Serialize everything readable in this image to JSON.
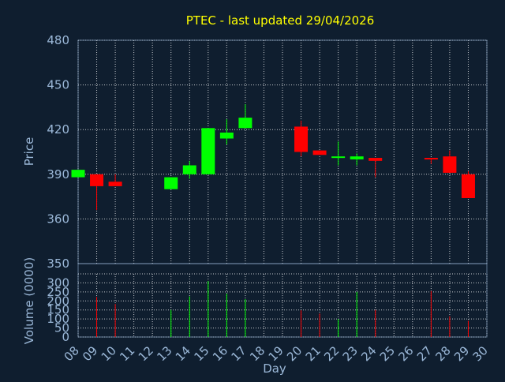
{
  "chart_data": [
    {
      "type": "candlestick",
      "title": "PTEC - last updated 29/04/2026",
      "ylabel": "Price",
      "ylim": [
        330,
        480
      ],
      "yticks": [
        360,
        390,
        420,
        450,
        480
      ],
      "grid": true,
      "colors": {
        "up": "#00ff00",
        "down": "#ff0000",
        "grid": "#ffffff",
        "text": "#9bb8d8",
        "title": "#ffff00",
        "background": "#0f1e2f"
      },
      "candles": [
        {
          "day": "08",
          "open": 388,
          "close": 393,
          "high": 393,
          "low": 388
        },
        {
          "day": "09",
          "open": 390,
          "close": 382,
          "high": 390,
          "low": 366
        },
        {
          "day": "10",
          "open": 385,
          "close": 382,
          "high": 390,
          "low": 382
        },
        {
          "day": "13",
          "open": 380,
          "close": 388,
          "high": 388,
          "low": 380
        },
        {
          "day": "14",
          "open": 390,
          "close": 396,
          "high": 399,
          "low": 387
        },
        {
          "day": "15",
          "open": 390,
          "close": 421,
          "high": 421,
          "low": 390
        },
        {
          "day": "16",
          "open": 414,
          "close": 418,
          "high": 427,
          "low": 410
        },
        {
          "day": "17",
          "open": 421,
          "close": 428,
          "high": 437,
          "low": 421
        },
        {
          "day": "20",
          "open": 422,
          "close": 405,
          "high": 426,
          "low": 402
        },
        {
          "day": "21",
          "open": 406,
          "close": 403,
          "high": 406,
          "low": 403
        },
        {
          "day": "22",
          "open": 401,
          "close": 402,
          "high": 412,
          "low": 396
        },
        {
          "day": "23",
          "open": 400,
          "close": 402,
          "high": 404,
          "low": 396
        },
        {
          "day": "24",
          "open": 401,
          "close": 399,
          "high": 401,
          "low": 388
        },
        {
          "day": "27",
          "open": 401,
          "close": 400,
          "high": 401,
          "low": 397
        },
        {
          "day": "28",
          "open": 402,
          "close": 391,
          "high": 406,
          "low": 391
        },
        {
          "day": "29",
          "open": 390,
          "close": 374,
          "high": 392,
          "low": 374
        }
      ]
    },
    {
      "type": "bar",
      "ylabel": "Volume (0000)",
      "xlabel": "Day",
      "ylim": [
        0,
        350
      ],
      "yticks": [
        0,
        50,
        100,
        150,
        200,
        250,
        300,
        350
      ],
      "grid": true,
      "categories": [
        "08",
        "09",
        "10",
        "11",
        "12",
        "13",
        "14",
        "15",
        "16",
        "17",
        "18",
        "19",
        "20",
        "21",
        "22",
        "23",
        "24",
        "25",
        "26",
        "27",
        "28",
        "29",
        "30"
      ],
      "volumes": [
        {
          "day": "09",
          "value": 222,
          "dir": "down"
        },
        {
          "day": "10",
          "value": 183,
          "dir": "down"
        },
        {
          "day": "13",
          "value": 150,
          "dir": "up"
        },
        {
          "day": "14",
          "value": 225,
          "dir": "up"
        },
        {
          "day": "15",
          "value": 310,
          "dir": "up"
        },
        {
          "day": "16",
          "value": 240,
          "dir": "up"
        },
        {
          "day": "17",
          "value": 210,
          "dir": "up"
        },
        {
          "day": "20",
          "value": 148,
          "dir": "down"
        },
        {
          "day": "21",
          "value": 130,
          "dir": "down"
        },
        {
          "day": "22",
          "value": 100,
          "dir": "up"
        },
        {
          "day": "23",
          "value": 250,
          "dir": "up"
        },
        {
          "day": "24",
          "value": 150,
          "dir": "down"
        },
        {
          "day": "27",
          "value": 255,
          "dir": "down"
        },
        {
          "day": "28",
          "value": 115,
          "dir": "down"
        },
        {
          "day": "29",
          "value": 90,
          "dir": "down"
        }
      ]
    }
  ]
}
